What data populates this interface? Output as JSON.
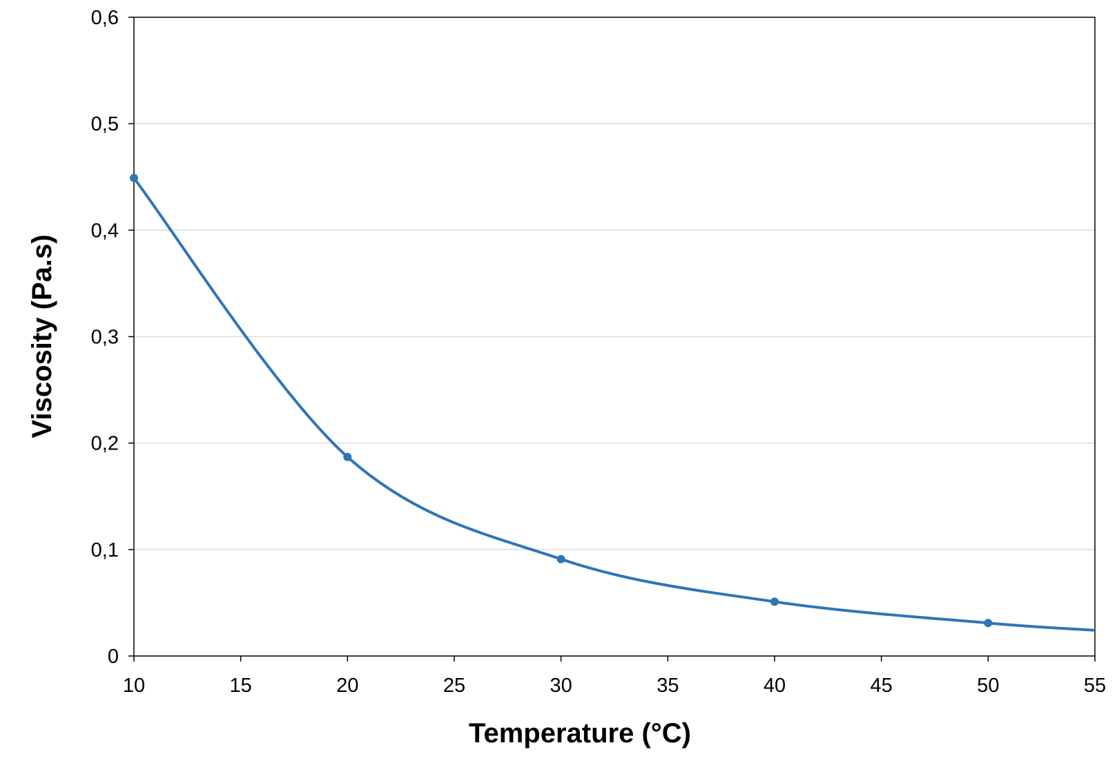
{
  "chart_data": {
    "type": "line",
    "title": "",
    "xlabel": "Temperature (°C)",
    "ylabel": "Viscosity (Pa.s)",
    "xlim": [
      10,
      55
    ],
    "ylim": [
      0,
      0.6
    ],
    "x_ticks": [
      "10",
      "15",
      "20",
      "25",
      "30",
      "35",
      "40",
      "45",
      "50",
      "55"
    ],
    "y_ticks": [
      "0",
      "0,1",
      "0,2",
      "0,3",
      "0,4",
      "0,5",
      "0,6"
    ],
    "grid": "horizontal",
    "smoothed": true,
    "legend": "none",
    "series": [
      {
        "x": [
          10,
          20,
          30,
          40,
          50
        ],
        "values": [
          0.449,
          0.187,
          0.091,
          0.051,
          0.031
        ],
        "color": "#2E75B6"
      }
    ]
  }
}
